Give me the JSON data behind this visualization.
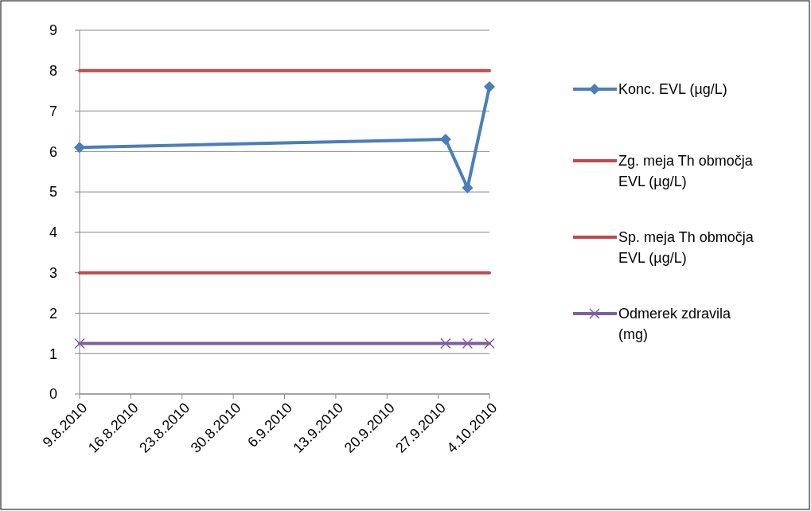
{
  "chart_data": {
    "type": "line",
    "x": [
      "2010-08-09",
      "2010-09-28",
      "2010-10-01",
      "2010-10-04"
    ],
    "xlim": [
      "2010-08-09",
      "2010-10-04"
    ],
    "xticks": [
      {
        "value": "2010-08-09",
        "label": "9.8.2010"
      },
      {
        "value": "2010-08-16",
        "label": "16.8.2010"
      },
      {
        "value": "2010-08-23",
        "label": "23.8.2010"
      },
      {
        "value": "2010-08-30",
        "label": "30.8.2010"
      },
      {
        "value": "2010-09-06",
        "label": "6.9.2010"
      },
      {
        "value": "2010-09-13",
        "label": "13.9.2010"
      },
      {
        "value": "2010-09-20",
        "label": "20.9.2010"
      },
      {
        "value": "2010-09-27",
        "label": "27.9.2010"
      },
      {
        "value": "2010-10-04",
        "label": "4.10.2010"
      }
    ],
    "ylim": [
      0,
      9
    ],
    "yticks": [
      0,
      1,
      2,
      3,
      4,
      5,
      6,
      7,
      8,
      9
    ],
    "grid": "y",
    "legend": "right",
    "series": [
      {
        "name": "Konc. EVL (µg/L)",
        "color": "#4a7ebb",
        "marker": "diamond",
        "values": [
          6.1,
          6.3,
          5.1,
          7.6
        ]
      },
      {
        "name": "Zg. meja Th območja EVL (µg/L)",
        "color": "#be4b48",
        "marker": "none",
        "values": [
          8,
          8,
          8,
          8
        ]
      },
      {
        "name": "Sp. meja Th območja EVL (µg/L)",
        "color": "#be4b48",
        "marker": "none",
        "values": [
          3,
          3,
          3,
          3
        ]
      },
      {
        "name": "Odmerek zdravila (mg)",
        "color": "#7d60a0",
        "marker": "cross",
        "values": [
          1.25,
          1.25,
          1.25,
          1.25
        ]
      }
    ]
  }
}
